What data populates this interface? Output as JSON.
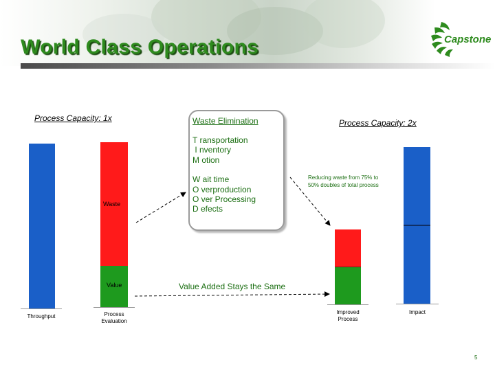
{
  "slide": {
    "title": "World Class Operations",
    "page_number": "5",
    "logo_text": "Capstone"
  },
  "left_label": "Process Capacity: 1x",
  "right_label": "Process Capacity: 2x",
  "bars": {
    "throughput": {
      "label": "Throughput",
      "color": "#1a5fc8"
    },
    "process_evaluation": {
      "label_line1": "Process",
      "label_line2": "Evaluation",
      "waste_label": "Waste",
      "value_label": "Value",
      "waste_fraction": 0.75,
      "value_fraction": 0.25
    },
    "improved_process": {
      "label_line1": "Improved",
      "label_line2": "Process",
      "waste_fraction": 0.5,
      "value_fraction": 0.5
    },
    "impact": {
      "label": "Impact",
      "relative_height": 2
    }
  },
  "colors": {
    "blue": "#1a5fc8",
    "red": "#ff1a1a",
    "green": "#1e9a1e",
    "text_green": "#1b6e12"
  },
  "waste_box": {
    "title": "Waste Elimination",
    "items": [
      "T ransportation",
      " I nventory",
      "M otion",
      "W ait time",
      "O verproduction",
      "O ver Processing",
      "D efects"
    ]
  },
  "note": "Reducing waste from 75% to 50% doubles of total process",
  "value_added": "Value Added Stays the Same"
}
